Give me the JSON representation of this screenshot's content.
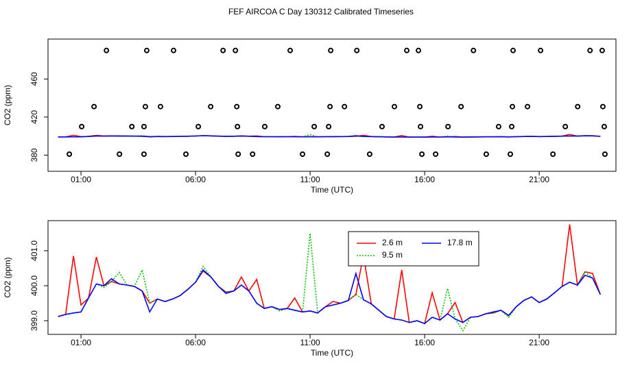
{
  "chart_data": [
    {
      "type": "scatter",
      "title": "FEF AIRCOA C  Day 130312  Calibrated Timeseries",
      "xlabel": "Time (UTC)",
      "ylabel": "CO2 (ppm)",
      "color": "#000000",
      "x": [
        0.49,
        1.03,
        1.57,
        2.11,
        2.68,
        3.22,
        3.75,
        3.81,
        3.75,
        3.87,
        4.47,
        5.04,
        5.58,
        6.12,
        6.66,
        7.2,
        7.74,
        7.8,
        7.83,
        7.86,
        8.49,
        9.02,
        9.59,
        10.13,
        10.67,
        11.18,
        11.75,
        11.81,
        11.87,
        11.9,
        12.5,
        13.04,
        13.6,
        14.14,
        14.68,
        15.22,
        15.73,
        15.79,
        15.82,
        15.88,
        16.48,
        17.02,
        17.59,
        18.13,
        18.69,
        19.23,
        19.74,
        19.8,
        19.83,
        19.86,
        20.49,
        21.06,
        21.6,
        22.14,
        22.68,
        23.22,
        23.75,
        23.78,
        23.84,
        23.87
      ],
      "values": [
        381,
        410,
        431,
        490,
        381,
        410,
        410,
        431,
        381,
        490,
        431,
        490,
        381,
        410,
        431,
        490,
        490,
        431,
        410,
        381,
        381,
        410,
        431,
        490,
        381,
        410,
        381,
        410,
        431,
        490,
        431,
        490,
        381,
        410,
        431,
        490,
        490,
        431,
        410,
        381,
        381,
        410,
        431,
        490,
        381,
        410,
        381,
        410,
        431,
        490,
        431,
        490,
        381,
        410,
        431,
        490,
        490,
        431,
        410,
        381
      ],
      "xlim": [
        -0.44,
        24.35
      ],
      "ylim": [
        363,
        502
      ],
      "xticks": [
        {
          "value": 1,
          "label": "01:00"
        },
        {
          "value": 6,
          "label": "06:00"
        },
        {
          "value": 11,
          "label": "11:00"
        },
        {
          "value": 16,
          "label": "16:00"
        },
        {
          "value": 21,
          "label": "21:00"
        }
      ],
      "yticks": [
        380,
        420,
        460
      ]
    },
    {
      "type": "line",
      "xlabel": "Time (UTC)",
      "ylabel": "CO2 (ppm)",
      "legend": "top",
      "x": [
        0,
        0.33,
        0.67,
        1,
        1.33,
        1.67,
        2,
        2.33,
        2.67,
        3,
        3.33,
        3.67,
        4,
        4.33,
        4.67,
        5,
        5.33,
        5.67,
        6,
        6.33,
        6.67,
        7,
        7.33,
        7.67,
        8,
        8.33,
        8.67,
        9,
        9.33,
        9.67,
        10,
        10.33,
        10.67,
        11,
        11.33,
        11.67,
        12,
        12.33,
        12.67,
        13,
        13.33,
        13.67,
        14,
        14.33,
        14.67,
        15,
        15.33,
        15.67,
        16,
        16.33,
        16.67,
        17,
        17.33,
        17.67,
        18,
        18.33,
        18.67,
        19,
        19.33,
        19.67,
        20,
        20.33,
        20.67,
        21,
        21.33,
        21.67,
        22,
        22.33,
        22.67,
        23,
        23.33,
        23.67
      ],
      "series": [
        {
          "name": "2.6 m",
          "color": "#ff0000",
          "linestyle": "solid",
          "values": [
            399.12,
            399.18,
            400.85,
            399.45,
            399.65,
            400.82,
            400.0,
            400.12,
            400.05,
            400.02,
            399.98,
            399.85,
            399.5,
            399.62,
            399.55,
            399.62,
            399.72,
            399.9,
            400.1,
            400.42,
            400.25,
            399.98,
            399.82,
            399.85,
            400.25,
            399.85,
            400.18,
            399.35,
            399.4,
            399.32,
            399.35,
            399.65,
            399.25,
            399.28,
            399.22,
            399.4,
            399.55,
            399.5,
            399.58,
            399.75,
            400.88,
            399.48,
            399.3,
            399.12,
            399.05,
            400.45,
            398.95,
            399.0,
            398.92,
            399.8,
            399.02,
            399.2,
            399.52,
            398.95,
            399.1,
            399.12,
            399.2,
            399.22,
            399.3,
            399.15,
            399.4,
            399.58,
            399.68,
            399.52,
            399.62,
            399.8,
            399.98,
            401.75,
            400.02,
            400.4,
            400.35,
            399.75
          ]
        },
        {
          "name": "9.5 m",
          "color": "#00c000",
          "linestyle": "dotted",
          "values": [
            399.12,
            399.18,
            399.22,
            399.25,
            399.65,
            400.05,
            399.95,
            400.12,
            400.38,
            400.02,
            399.98,
            400.45,
            399.5,
            399.62,
            399.55,
            399.62,
            399.72,
            399.9,
            400.1,
            400.55,
            400.25,
            399.98,
            399.82,
            399.85,
            400.02,
            399.85,
            399.5,
            399.35,
            399.4,
            399.28,
            399.35,
            399.3,
            399.25,
            401.5,
            399.22,
            399.4,
            399.45,
            399.5,
            399.58,
            399.75,
            399.6,
            399.48,
            399.3,
            399.12,
            399.05,
            399.02,
            398.95,
            399.0,
            398.92,
            399.1,
            399.02,
            399.92,
            399.05,
            398.72,
            399.1,
            399.12,
            399.2,
            399.22,
            399.3,
            399.1,
            399.4,
            399.58,
            399.68,
            399.52,
            399.62,
            399.8,
            399.98,
            400.1,
            400.02,
            400.4,
            400.22,
            399.75
          ]
        },
        {
          "name": "17.8 m",
          "color": "#0000ff",
          "linestyle": "solid",
          "values": [
            399.12,
            399.18,
            399.22,
            399.25,
            399.65,
            400.05,
            400.0,
            400.2,
            400.05,
            400.02,
            399.98,
            399.85,
            399.25,
            399.62,
            399.55,
            399.62,
            399.72,
            399.9,
            400.1,
            400.45,
            400.25,
            399.98,
            399.78,
            399.85,
            400.02,
            399.85,
            399.5,
            399.35,
            399.4,
            399.32,
            399.35,
            399.3,
            399.25,
            399.28,
            399.22,
            399.4,
            399.45,
            399.5,
            399.58,
            400.35,
            399.6,
            399.48,
            399.3,
            399.12,
            399.05,
            399.02,
            398.95,
            399.0,
            398.92,
            399.1,
            399.02,
            399.2,
            399.05,
            398.95,
            399.1,
            399.12,
            399.2,
            399.25,
            399.3,
            399.15,
            399.4,
            399.58,
            399.68,
            399.52,
            399.62,
            399.8,
            399.98,
            400.1,
            400.02,
            400.3,
            400.22,
            399.75
          ]
        }
      ],
      "xlim": [
        -0.44,
        24.35
      ],
      "ylim": [
        398.61,
        401.86
      ],
      "xticks": [
        {
          "value": 1,
          "label": "01:00"
        },
        {
          "value": 6,
          "label": "06:00"
        },
        {
          "value": 11,
          "label": "11:00"
        },
        {
          "value": 16,
          "label": "16:00"
        },
        {
          "value": 21,
          "label": "21:00"
        }
      ],
      "yticks": [
        {
          "value": 399,
          "label": "399.0"
        },
        {
          "value": 400,
          "label": "400.0"
        },
        {
          "value": 401,
          "label": "401.0"
        }
      ]
    }
  ]
}
